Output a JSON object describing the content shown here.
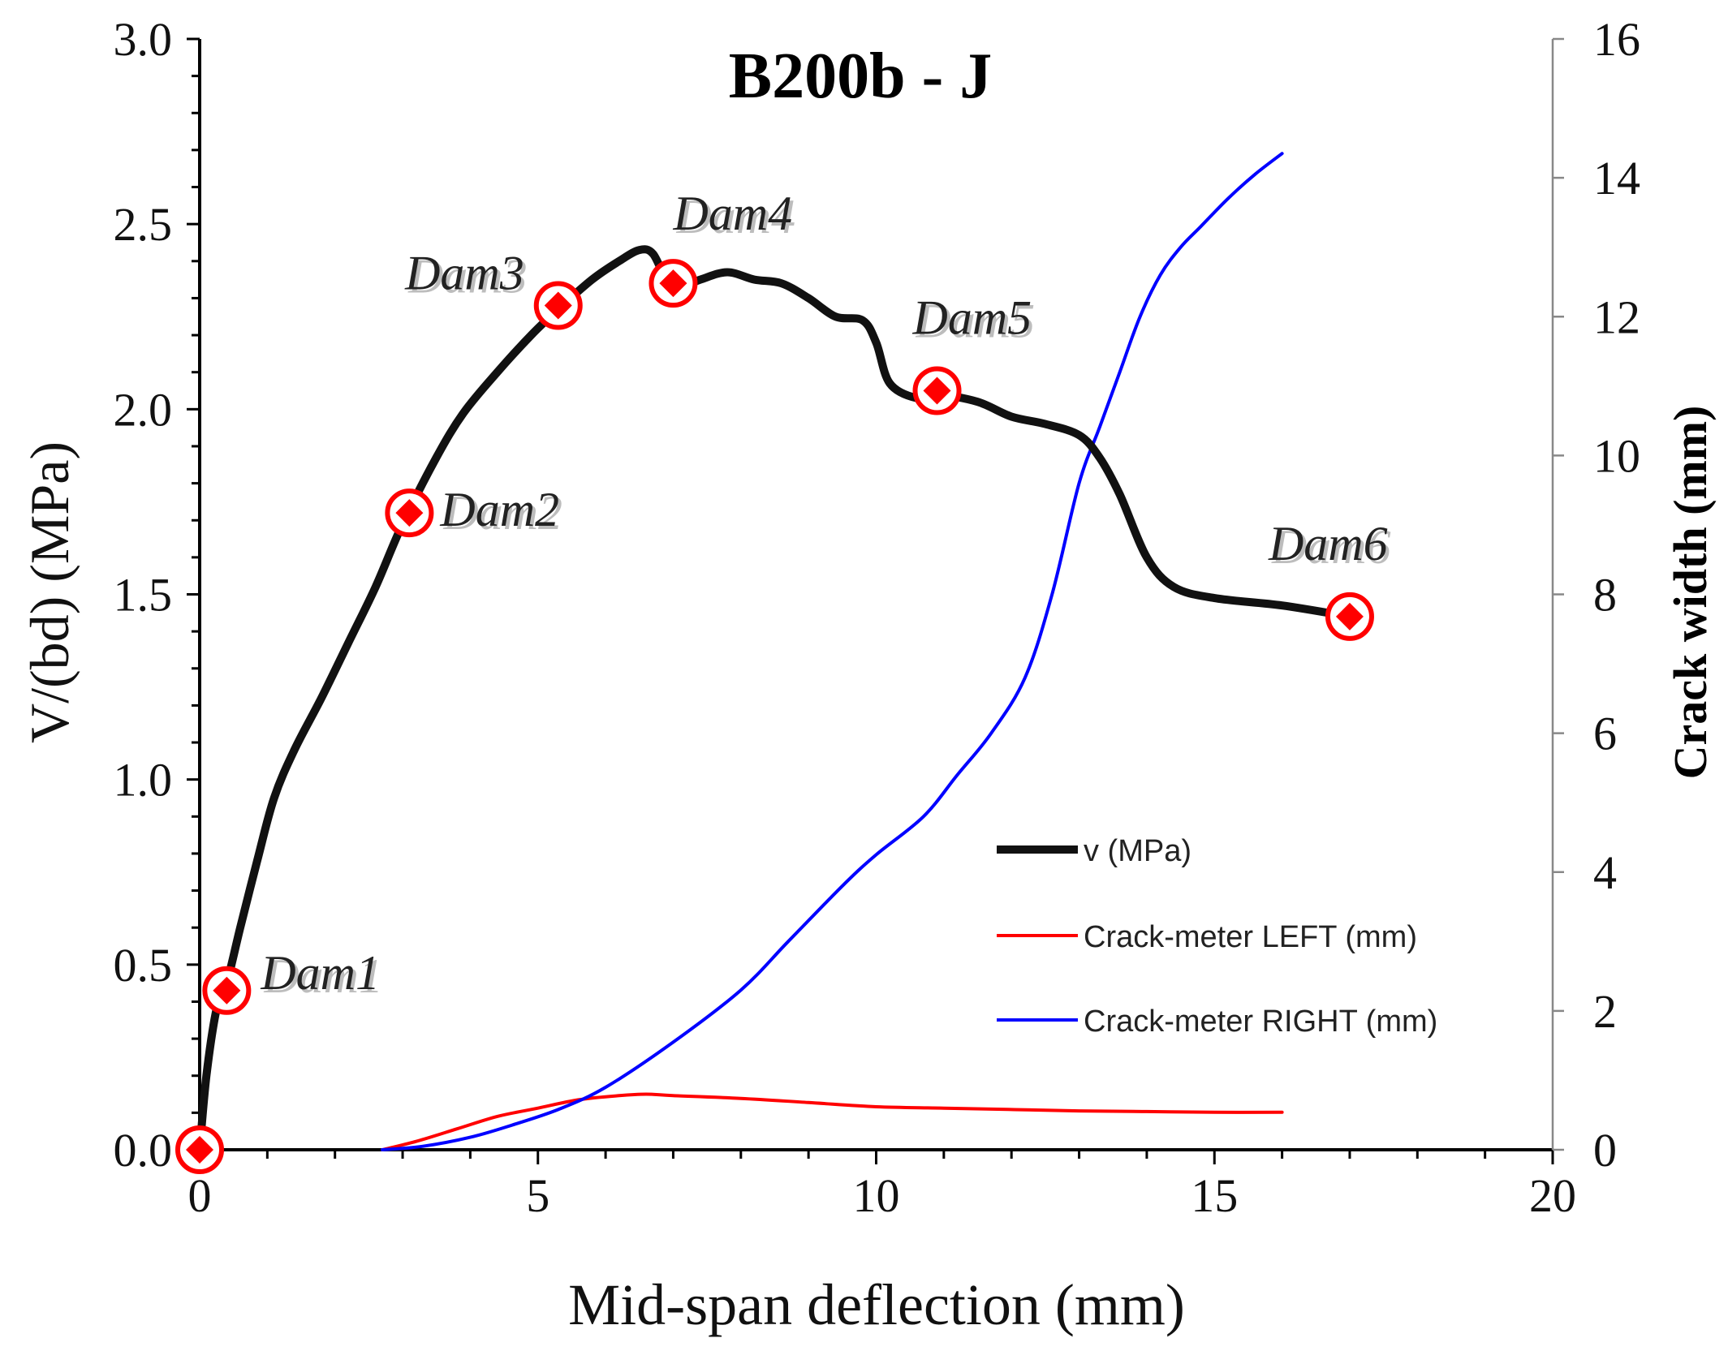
{
  "chart_data": {
    "type": "line",
    "title": "B200b - J",
    "xlabel": "Mid-span deflection (mm)",
    "ylabel": "V/(bd) (MPa)",
    "y2label": "Crack width (mm)",
    "xlim": [
      0,
      20
    ],
    "ylim": [
      0,
      3.0
    ],
    "y2lim": [
      0,
      16
    ],
    "xticks": [
      0,
      5,
      10,
      15,
      20
    ],
    "xtick_labels": [
      "0",
      "5",
      "10",
      "15",
      "20"
    ],
    "yticks": [
      0,
      0.5,
      1.0,
      1.5,
      2.0,
      2.5,
      3.0
    ],
    "ytick_labels": [
      "0.0",
      "0.5",
      "1.0",
      "1.5",
      "2.0",
      "2.5",
      "3.0"
    ],
    "y2ticks": [
      0,
      2,
      4,
      6,
      8,
      10,
      12,
      14,
      16
    ],
    "y2tick_labels": [
      "0",
      "2",
      "4",
      "6",
      "8",
      "10",
      "12",
      "14",
      "16"
    ],
    "grid": false,
    "legend_position": "lower-right",
    "series": [
      {
        "name": "v (MPa)",
        "axis": "left",
        "color": "#111111",
        "x": [
          0,
          0.1,
          0.25,
          0.4,
          0.6,
          0.85,
          1.1,
          1.4,
          1.8,
          2.2,
          2.6,
          3.0,
          3.5,
          3.9,
          4.4,
          4.9,
          5.3,
          5.8,
          6.2,
          6.5,
          6.7,
          6.9,
          7.1,
          7.4,
          7.8,
          8.2,
          8.6,
          9.0,
          9.4,
          9.8,
          10.0,
          10.2,
          10.6,
          10.9,
          11.5,
          12.0,
          12.5,
          13.0,
          13.3,
          13.6,
          14.0,
          14.4,
          15.0,
          16.0,
          17.0
        ],
        "y": [
          0.0,
          0.2,
          0.38,
          0.45,
          0.6,
          0.78,
          0.95,
          1.08,
          1.22,
          1.37,
          1.52,
          1.69,
          1.87,
          1.99,
          2.1,
          2.2,
          2.27,
          2.35,
          2.4,
          2.43,
          2.42,
          2.35,
          2.33,
          2.35,
          2.37,
          2.35,
          2.34,
          2.3,
          2.25,
          2.24,
          2.18,
          2.07,
          2.03,
          2.04,
          2.02,
          1.98,
          1.96,
          1.93,
          1.87,
          1.77,
          1.6,
          1.52,
          1.49,
          1.47,
          1.44
        ]
      },
      {
        "name": "Crack-meter LEFT (mm)",
        "axis": "right",
        "color": "#ff0000",
        "x": [
          2.7,
          3.2,
          3.8,
          4.4,
          5.0,
          5.6,
          6.2,
          6.6,
          7.0,
          8.0,
          9.0,
          10.0,
          11.0,
          12.0,
          13.0,
          14.0,
          15.0,
          16.0
        ],
        "y": [
          0.0,
          0.12,
          0.3,
          0.48,
          0.6,
          0.72,
          0.78,
          0.8,
          0.78,
          0.74,
          0.68,
          0.62,
          0.6,
          0.58,
          0.56,
          0.55,
          0.54,
          0.54
        ]
      },
      {
        "name": "Crack-meter RIGHT (mm)",
        "axis": "right",
        "color": "#0000ff",
        "x": [
          2.7,
          3.3,
          4.0,
          4.6,
          5.3,
          6.0,
          7.0,
          8.0,
          8.7,
          9.5,
          10.0,
          10.7,
          11.2,
          11.7,
          12.2,
          12.6,
          13.0,
          13.3,
          13.6,
          13.9,
          14.2,
          14.5,
          14.8,
          15.2,
          15.6,
          16.0
        ],
        "y": [
          0.0,
          0.05,
          0.18,
          0.35,
          0.58,
          0.9,
          1.55,
          2.3,
          3.0,
          3.8,
          4.25,
          4.8,
          5.4,
          6.0,
          6.8,
          8.0,
          9.6,
          10.4,
          11.2,
          12.0,
          12.6,
          13.0,
          13.3,
          13.7,
          14.05,
          14.35
        ]
      }
    ],
    "damage_points": [
      {
        "label": "Dam1",
        "x": 0.4,
        "y": 0.43
      },
      {
        "label": "Dam2",
        "x": 3.1,
        "y": 1.72
      },
      {
        "label": "Dam3",
        "x": 5.3,
        "y": 2.28
      },
      {
        "label": "Dam4",
        "x": 7.0,
        "y": 2.34
      },
      {
        "label": "Dam5",
        "x": 10.9,
        "y": 2.05
      },
      {
        "label": "Dam6",
        "x": 17.0,
        "y": 1.44
      },
      {
        "label": "",
        "x": 0.0,
        "y": 0.0
      }
    ],
    "marker_color": "#ff0000"
  }
}
